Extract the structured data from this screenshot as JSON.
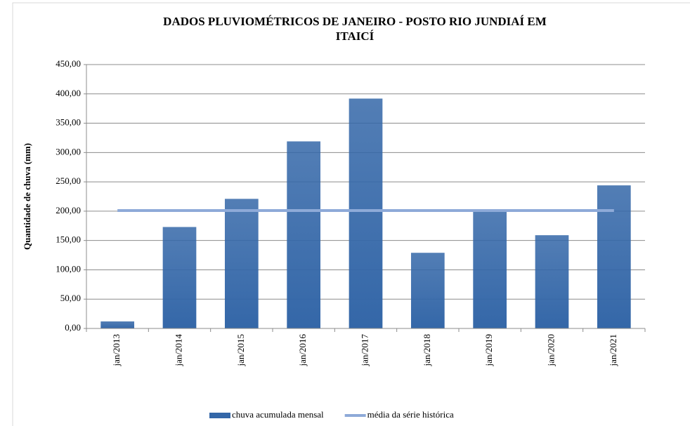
{
  "chart_data": {
    "type": "bar",
    "title": "DADOS PLUVIOMÉTRICOS DE JANEIRO - POSTO RIO JUNDIAÍ EM",
    "title_line2": "ITAICÍ",
    "y_axis_label": "Quantidade de chuva (mm)",
    "categories": [
      "jan/2013",
      "jan/2014",
      "jan/2015",
      "jan/2016",
      "jan/2017",
      "jan/2018",
      "jan/2019",
      "jan/2020",
      "jan/2021"
    ],
    "series": [
      {
        "name": "chuva acumulada mensal",
        "color": "#3467a8",
        "values": [
          12,
          173,
          221,
          319,
          392,
          129,
          200,
          159,
          244
        ]
      },
      {
        "name": "média da série histórica",
        "color": "#8eaad8",
        "type": "line",
        "values": [
          201,
          201,
          201,
          201,
          201,
          201,
          201,
          201,
          201
        ]
      }
    ],
    "ylim": [
      0,
      450
    ],
    "yticks": [
      {
        "value": 0,
        "label": "0,00"
      },
      {
        "value": 50,
        "label": "50,00"
      },
      {
        "value": 100,
        "label": "100,00"
      },
      {
        "value": 150,
        "label": "150,00"
      },
      {
        "value": 200,
        "label": "200,00"
      },
      {
        "value": 250,
        "label": "250,00"
      },
      {
        "value": 300,
        "label": "300,00"
      },
      {
        "value": 350,
        "label": "350,00"
      },
      {
        "value": 400,
        "label": "400,00"
      },
      {
        "value": 450,
        "label": "450,00"
      }
    ],
    "grid": true,
    "legend": "bottom"
  }
}
